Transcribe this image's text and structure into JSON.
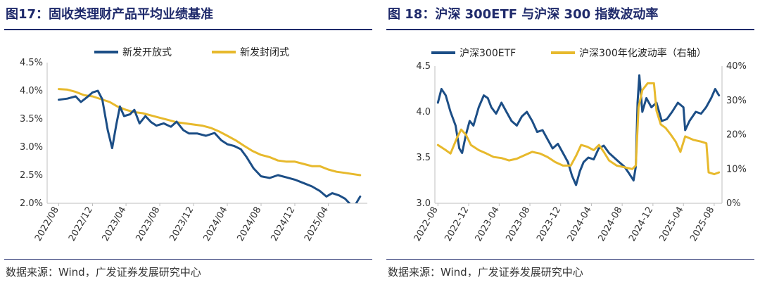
{
  "colors": {
    "navy": "#1c4e86",
    "gold": "#e7b92c",
    "title": "#1f2a6b"
  },
  "left": {
    "title": "图17：固收类理财产品平均业绩基准",
    "source": "数据来源：Wind，广发证券发展研究中心"
  },
  "right": {
    "title": "图 18：沪深 300ETF 与沪深 300 指数波动率",
    "source": "数据来源：Wind，广发证券发展研究中心"
  },
  "chart_data": [
    {
      "type": "line",
      "title": "图17：固收类理财产品平均业绩基准",
      "xlabel": "",
      "ylabel": "",
      "ylim": [
        2.0,
        4.5
      ],
      "y_ticks": [
        "2.0%",
        "2.5%",
        "3.0%",
        "3.5%",
        "4.0%",
        "4.5%"
      ],
      "x_ticks": [
        "2022/08",
        "2022/12",
        "2023/04",
        "2023/08",
        "2023/12",
        "2024/04",
        "2024/08",
        "2024/12",
        "2025/04"
      ],
      "legend": "top",
      "grid": false,
      "series": [
        {
          "name": "新发开放式",
          "color": "#1c4e86",
          "points": [
            [
              "2022-08-01",
              3.84
            ],
            [
              "2022-09-01",
              3.86
            ],
            [
              "2022-10-01",
              3.9
            ],
            [
              "2022-10-20",
              3.8
            ],
            [
              "2022-11-10",
              3.88
            ],
            [
              "2022-12-01",
              3.97
            ],
            [
              "2022-12-20",
              4.0
            ],
            [
              "2023-01-05",
              3.85
            ],
            [
              "2023-01-25",
              3.3
            ],
            [
              "2023-02-10",
              2.98
            ],
            [
              "2023-02-25",
              3.4
            ],
            [
              "2023-03-10",
              3.72
            ],
            [
              "2023-03-25",
              3.55
            ],
            [
              "2023-04-15",
              3.58
            ],
            [
              "2023-05-01",
              3.66
            ],
            [
              "2023-05-20",
              3.42
            ],
            [
              "2023-06-10",
              3.55
            ],
            [
              "2023-07-01",
              3.44
            ],
            [
              "2023-07-20",
              3.38
            ],
            [
              "2023-08-15",
              3.42
            ],
            [
              "2023-09-10",
              3.36
            ],
            [
              "2023-10-01",
              3.45
            ],
            [
              "2023-10-25",
              3.3
            ],
            [
              "2023-11-15",
              3.24
            ],
            [
              "2023-12-15",
              3.24
            ],
            [
              "2024-01-15",
              3.2
            ],
            [
              "2024-02-15",
              3.25
            ],
            [
              "2024-03-10",
              3.12
            ],
            [
              "2024-04-01",
              3.05
            ],
            [
              "2024-04-25",
              3.02
            ],
            [
              "2024-05-20",
              2.96
            ],
            [
              "2024-06-10",
              2.82
            ],
            [
              "2024-07-05",
              2.62
            ],
            [
              "2024-08-01",
              2.48
            ],
            [
              "2024-09-01",
              2.45
            ],
            [
              "2024-10-01",
              2.5
            ],
            [
              "2024-11-01",
              2.46
            ],
            [
              "2024-12-01",
              2.42
            ],
            [
              "2025-01-01",
              2.36
            ],
            [
              "2025-02-01",
              2.3
            ],
            [
              "2025-03-01",
              2.22
            ],
            [
              "2025-03-25",
              2.12
            ],
            [
              "2025-04-15",
              2.18
            ],
            [
              "2025-05-10",
              2.14
            ],
            [
              "2025-06-01",
              2.08
            ],
            [
              "2025-06-20",
              1.98
            ],
            [
              "2025-07-05",
              1.95
            ],
            [
              "2025-07-25",
              2.12
            ]
          ]
        },
        {
          "name": "新发封闭式",
          "color": "#e7b92c",
          "points": [
            [
              "2022-08-01",
              4.03
            ],
            [
              "2022-09-01",
              4.02
            ],
            [
              "2022-10-01",
              3.98
            ],
            [
              "2022-11-01",
              3.92
            ],
            [
              "2022-12-01",
              3.9
            ],
            [
              "2023-01-01",
              3.85
            ],
            [
              "2023-02-01",
              3.8
            ],
            [
              "2023-03-01",
              3.72
            ],
            [
              "2023-04-01",
              3.66
            ],
            [
              "2023-05-01",
              3.62
            ],
            [
              "2023-06-01",
              3.6
            ],
            [
              "2023-07-01",
              3.56
            ],
            [
              "2023-08-01",
              3.52
            ],
            [
              "2023-09-01",
              3.48
            ],
            [
              "2023-10-01",
              3.44
            ],
            [
              "2023-11-01",
              3.42
            ],
            [
              "2023-12-01",
              3.4
            ],
            [
              "2024-01-01",
              3.38
            ],
            [
              "2024-02-01",
              3.34
            ],
            [
              "2024-03-01",
              3.28
            ],
            [
              "2024-04-01",
              3.2
            ],
            [
              "2024-05-01",
              3.12
            ],
            [
              "2024-06-01",
              3.02
            ],
            [
              "2024-07-01",
              2.93
            ],
            [
              "2024-08-01",
              2.86
            ],
            [
              "2024-09-01",
              2.82
            ],
            [
              "2024-10-01",
              2.76
            ],
            [
              "2024-11-01",
              2.74
            ],
            [
              "2024-12-01",
              2.74
            ],
            [
              "2025-01-01",
              2.7
            ],
            [
              "2025-02-01",
              2.66
            ],
            [
              "2025-03-01",
              2.66
            ],
            [
              "2025-04-01",
              2.6
            ],
            [
              "2025-05-01",
              2.56
            ],
            [
              "2025-06-01",
              2.54
            ],
            [
              "2025-07-25",
              2.5
            ]
          ]
        }
      ]
    },
    {
      "type": "line",
      "title": "图 18：沪深 300ETF 与沪深 300 指数波动率",
      "xlabel": "",
      "ylabel": "",
      "ylim": [
        3.0,
        4.5
      ],
      "y2lim": [
        0,
        40
      ],
      "y_ticks": [
        "3.0",
        "3.5",
        "4.0",
        "4.5"
      ],
      "y2_ticks": [
        "0%",
        "10%",
        "20%",
        "30%",
        "40%"
      ],
      "x_ticks": [
        "2022-08",
        "2022-12",
        "2023-04",
        "2023-08",
        "2023-12",
        "2024-04",
        "2024-08",
        "2024-12",
        "2025-04",
        "2025-08"
      ],
      "legend": "top",
      "grid": false,
      "series": [
        {
          "name": "沪深300ETF",
          "axis": "left",
          "color": "#1c4e86",
          "points": [
            [
              "2022-08-01",
              4.1
            ],
            [
              "2022-08-15",
              4.25
            ],
            [
              "2022-09-01",
              4.18
            ],
            [
              "2022-09-20",
              4.0
            ],
            [
              "2022-10-10",
              3.85
            ],
            [
              "2022-10-25",
              3.6
            ],
            [
              "2022-11-05",
              3.55
            ],
            [
              "2022-11-20",
              3.75
            ],
            [
              "2022-12-05",
              3.9
            ],
            [
              "2022-12-20",
              3.85
            ],
            [
              "2023-01-10",
              4.05
            ],
            [
              "2023-01-30",
              4.18
            ],
            [
              "2023-02-15",
              4.15
            ],
            [
              "2023-03-01",
              4.05
            ],
            [
              "2023-03-20",
              3.98
            ],
            [
              "2023-04-10",
              4.1
            ],
            [
              "2023-04-30",
              4.0
            ],
            [
              "2023-05-20",
              3.9
            ],
            [
              "2023-06-10",
              3.85
            ],
            [
              "2023-06-30",
              3.95
            ],
            [
              "2023-07-20",
              4.0
            ],
            [
              "2023-08-10",
              3.9
            ],
            [
              "2023-08-30",
              3.78
            ],
            [
              "2023-09-20",
              3.8
            ],
            [
              "2023-10-10",
              3.7
            ],
            [
              "2023-10-30",
              3.6
            ],
            [
              "2023-11-20",
              3.65
            ],
            [
              "2023-12-10",
              3.55
            ],
            [
              "2023-12-30",
              3.45
            ],
            [
              "2024-01-15",
              3.3
            ],
            [
              "2024-01-31",
              3.2
            ],
            [
              "2024-02-15",
              3.35
            ],
            [
              "2024-03-01",
              3.45
            ],
            [
              "2024-03-20",
              3.5
            ],
            [
              "2024-04-10",
              3.48
            ],
            [
              "2024-04-30",
              3.6
            ],
            [
              "2024-05-20",
              3.63
            ],
            [
              "2024-06-10",
              3.55
            ],
            [
              "2024-06-30",
              3.5
            ],
            [
              "2024-07-20",
              3.45
            ],
            [
              "2024-08-10",
              3.4
            ],
            [
              "2024-08-30",
              3.32
            ],
            [
              "2024-09-15",
              3.25
            ],
            [
              "2024-09-24",
              3.4
            ],
            [
              "2024-10-01",
              4.1
            ],
            [
              "2024-10-08",
              4.4
            ],
            [
              "2024-10-20",
              4.0
            ],
            [
              "2024-11-05",
              4.15
            ],
            [
              "2024-11-25",
              4.05
            ],
            [
              "2024-12-15",
              4.1
            ],
            [
              "2025-01-05",
              3.9
            ],
            [
              "2025-01-25",
              3.92
            ],
            [
              "2025-02-15",
              4.0
            ],
            [
              "2025-03-10",
              4.1
            ],
            [
              "2025-04-01",
              4.05
            ],
            [
              "2025-04-08",
              3.8
            ],
            [
              "2025-04-25",
              3.9
            ],
            [
              "2025-05-20",
              4.0
            ],
            [
              "2025-06-10",
              3.98
            ],
            [
              "2025-06-30",
              4.05
            ],
            [
              "2025-07-20",
              4.15
            ],
            [
              "2025-08-05",
              4.25
            ],
            [
              "2025-08-20",
              4.18
            ]
          ]
        },
        {
          "name": "沪深300年化波动率（右轴）",
          "axis": "right",
          "color": "#e7b92c",
          "points": [
            [
              "2022-08-01",
              17
            ],
            [
              "2022-09-01",
              15.5
            ],
            [
              "2022-09-20",
              14.5
            ],
            [
              "2022-10-15",
              19
            ],
            [
              "2022-11-01",
              21.5
            ],
            [
              "2022-11-20",
              20
            ],
            [
              "2022-12-10",
              17
            ],
            [
              "2023-01-10",
              15.5
            ],
            [
              "2023-02-10",
              14.5
            ],
            [
              "2023-03-10",
              13.5
            ],
            [
              "2023-04-10",
              13.2
            ],
            [
              "2023-05-10",
              12.5
            ],
            [
              "2023-06-10",
              13
            ],
            [
              "2023-07-10",
              14
            ],
            [
              "2023-08-10",
              15
            ],
            [
              "2023-09-10",
              14.5
            ],
            [
              "2023-10-10",
              13.5
            ],
            [
              "2023-11-10",
              12
            ],
            [
              "2023-12-10",
              11
            ],
            [
              "2024-01-10",
              11
            ],
            [
              "2024-02-01",
              14
            ],
            [
              "2024-02-20",
              17
            ],
            [
              "2024-03-15",
              16.5
            ],
            [
              "2024-04-10",
              15.5
            ],
            [
              "2024-05-01",
              17
            ],
            [
              "2024-05-20",
              15
            ],
            [
              "2024-06-10",
              12.5
            ],
            [
              "2024-07-10",
              11
            ],
            [
              "2024-08-10",
              10.5
            ],
            [
              "2024-09-10",
              10
            ],
            [
              "2024-09-24",
              11
            ],
            [
              "2024-10-05",
              28
            ],
            [
              "2024-10-20",
              33
            ],
            [
              "2024-11-10",
              35
            ],
            [
              "2024-12-05",
              35
            ],
            [
              "2024-12-15",
              27
            ],
            [
              "2025-01-01",
              23
            ],
            [
              "2025-01-20",
              22
            ],
            [
              "2025-02-10",
              20
            ],
            [
              "2025-03-01",
              18
            ],
            [
              "2025-03-20",
              15
            ],
            [
              "2025-04-08",
              19.5
            ],
            [
              "2025-05-10",
              18.5
            ],
            [
              "2025-06-10",
              18
            ],
            [
              "2025-07-01",
              17.5
            ],
            [
              "2025-07-10",
              9
            ],
            [
              "2025-08-01",
              8.5
            ],
            [
              "2025-08-20",
              9
            ]
          ]
        }
      ]
    }
  ]
}
